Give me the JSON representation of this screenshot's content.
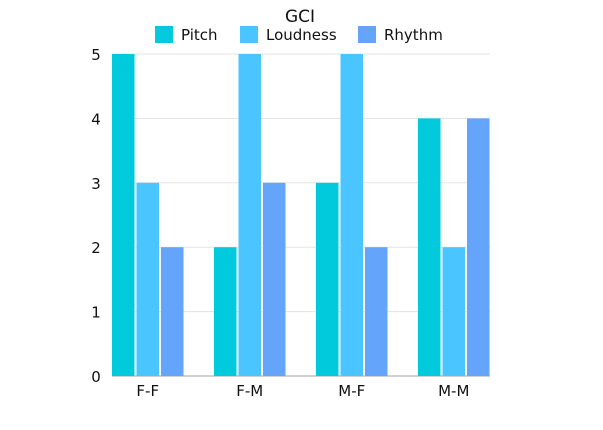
{
  "chart_data": {
    "type": "bar",
    "title": "GCI",
    "categories": [
      "F-F",
      "F-M",
      "M-F",
      "M-M"
    ],
    "series": [
      {
        "name": "Pitch",
        "values": [
          5,
          2,
          3,
          4
        ],
        "color": "#00CADB"
      },
      {
        "name": "Loudness",
        "values": [
          3,
          5,
          5,
          2
        ],
        "color": "#4AC5FF"
      },
      {
        "name": "Rhythm",
        "values": [
          2,
          3,
          2,
          4
        ],
        "color": "#64A4FA"
      }
    ],
    "xlabel": "",
    "ylabel": "",
    "ylim": [
      0,
      5
    ],
    "yticks": [
      0,
      1,
      2,
      3,
      4,
      5
    ],
    "grid": true,
    "legend": "top"
  }
}
